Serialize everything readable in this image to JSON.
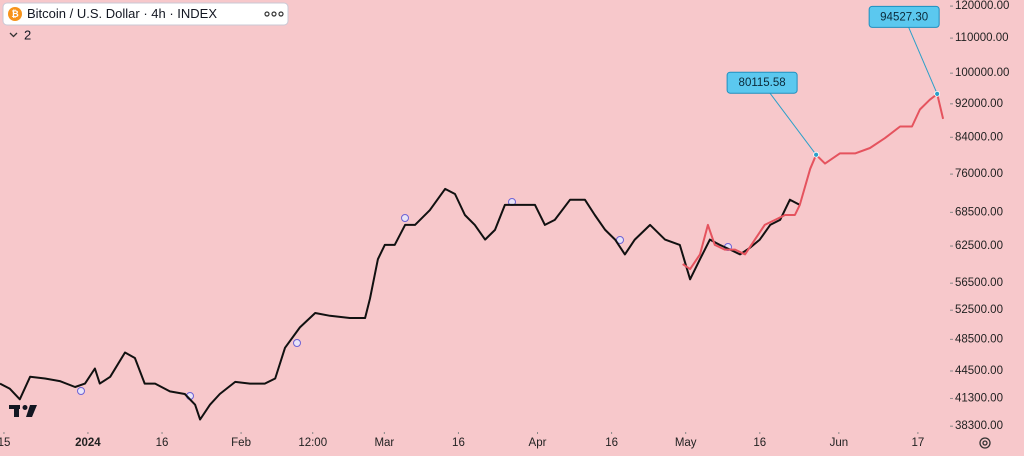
{
  "chart_data": {
    "type": "line",
    "title": "Bitcoin / U.S. Dollar · 4h · INDEX",
    "collapsed_count": "2",
    "log_scale": true,
    "grid": false,
    "xlim": [
      -17.8,
      174.5
    ],
    "ylim": [
      37700,
      122000
    ],
    "xticks": [
      {
        "value": -17,
        "label": "15"
      },
      {
        "value": 0,
        "label": "2024"
      },
      {
        "value": 15,
        "label": "16"
      },
      {
        "value": 31,
        "label": "Feb"
      },
      {
        "value": 45.5,
        "label": "12:00"
      },
      {
        "value": 60,
        "label": "Mar"
      },
      {
        "value": 75,
        "label": "16"
      },
      {
        "value": 91,
        "label": "Apr"
      },
      {
        "value": 106,
        "label": "16"
      },
      {
        "value": 121,
        "label": "May"
      },
      {
        "value": 136,
        "label": "16"
      },
      {
        "value": 152,
        "label": "Jun"
      },
      {
        "value": 168,
        "label": "17"
      }
    ],
    "yticks": [
      {
        "value": 120000,
        "label": "120000.00"
      },
      {
        "value": 110000,
        "label": "110000.00"
      },
      {
        "value": 100000,
        "label": "100000.00"
      },
      {
        "value": 92000,
        "label": "92000.00"
      },
      {
        "value": 84000,
        "label": "84000.00"
      },
      {
        "value": 76000,
        "label": "76000.00"
      },
      {
        "value": 68500,
        "label": "68500.00"
      },
      {
        "value": 62500,
        "label": "62500.00"
      },
      {
        "value": 56500,
        "label": "56500.00"
      },
      {
        "value": 52500,
        "label": "52500.00"
      },
      {
        "value": 48500,
        "label": "48500.00"
      },
      {
        "value": 44500,
        "label": "44500.00"
      },
      {
        "value": 41300,
        "label": "41300.00"
      },
      {
        "value": 38300,
        "label": "38300.00"
      }
    ],
    "series": [
      {
        "color": "#111111",
        "x": [
          -17.8,
          -15.8,
          -13.8,
          -11.7,
          -8.7,
          -5.7,
          -2.6,
          -0.6,
          1.4,
          2.4,
          4.5,
          7.5,
          9.5,
          11.5,
          13.6,
          16.6,
          19.6,
          21.7,
          22.7,
          24.7,
          26.7,
          29.8,
          32.8,
          35.8,
          37.9,
          39.9,
          42.9,
          46.0,
          49.0,
          53.0,
          56.1,
          57.1,
          58.7,
          60.1,
          62.1,
          64.2,
          66.2,
          69.2,
          72.3,
          74.3,
          76.3,
          78.3,
          80.4,
          82.4,
          84.4,
          87.4,
          90.5,
          92.5,
          94.5,
          97.6,
          100.6,
          102.6,
          104.7,
          106.7,
          108.7,
          110.7,
          113.8,
          116.8,
          119.8,
          121.9,
          123.9,
          125.9,
          127.9,
          130.0,
          132.0,
          134.0,
          136.0,
          138.1,
          140.1,
          142.1,
          144.1
        ],
        "values": [
          43000,
          42400,
          41200,
          43800,
          43600,
          43300,
          42600,
          43000,
          44800,
          43000,
          43800,
          46800,
          46100,
          43000,
          43000,
          42100,
          41800,
          40600,
          39000,
          40600,
          41800,
          43200,
          43000,
          43000,
          43600,
          47400,
          50100,
          52100,
          51700,
          51400,
          51400,
          54200,
          60300,
          62700,
          62700,
          66200,
          66200,
          68900,
          73000,
          72000,
          68000,
          66200,
          63600,
          65300,
          69900,
          69900,
          69900,
          66200,
          67100,
          70900,
          70900,
          68000,
          65300,
          63600,
          61100,
          63600,
          66200,
          63600,
          62700,
          57100,
          60300,
          63600,
          62700,
          61900,
          61100,
          62200,
          63600,
          66200,
          67100,
          70900,
          69900
        ]
      },
      {
        "color": "#e5535e",
        "x": [
          120.4,
          121.9,
          123.9,
          125.5,
          126.9,
          128.9,
          131.0,
          133.0,
          135.0,
          137.0,
          139.1,
          141.1,
          143.1,
          144.1,
          146.2,
          147.4,
          149.2,
          152.2,
          155.3,
          158.3,
          161.3,
          164.4,
          166.8,
          168.4,
          170.4,
          171.9,
          173.1
        ],
        "values": [
          59500,
          58700,
          61100,
          66200,
          62700,
          61900,
          61900,
          61100,
          63600,
          66200,
          67100,
          68000,
          68000,
          69900,
          77100,
          80100,
          78200,
          80400,
          80400,
          81600,
          83800,
          86500,
          86500,
          90600,
          93000,
          94500,
          88300
        ]
      }
    ],
    "annotations": [
      {
        "text": "80115.58",
        "x": 147.4,
        "y": 80115.58
      },
      {
        "text": "94527.30",
        "x": 171.9,
        "y": 94527.3
      }
    ]
  }
}
